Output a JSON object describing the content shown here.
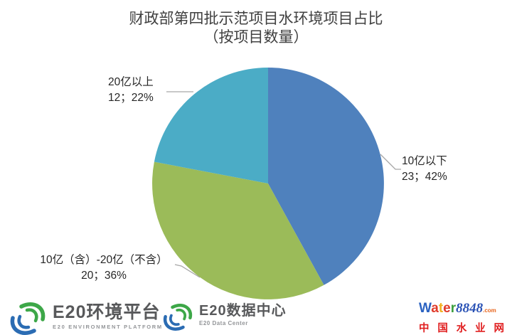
{
  "title": {
    "line1": "财政部第四批示范项目水环境项目占比",
    "line2": "（按项目数量）"
  },
  "chart_data": {
    "type": "pie",
    "title": "财政部第四批示范项目水环境项目占比（按项目数量）",
    "start_angle_deg": 0,
    "direction": "clockwise",
    "legend": "none",
    "slices": [
      {
        "label": "10亿以下",
        "count": 23,
        "percent": 42,
        "value_text": "23；42%",
        "color": "#4F81BD"
      },
      {
        "label": "10亿（含）-20亿（不含）",
        "count": 20,
        "percent": 36,
        "value_text": "20；36%",
        "color": "#9BBB59"
      },
      {
        "label": "20亿以上",
        "count": 12,
        "percent": 22,
        "value_text": "12；22%",
        "color": "#4BACC6"
      }
    ]
  },
  "footer": {
    "e20_platform": {
      "name": "E20环境平台",
      "subtitle": "E20 ENVIRONMENT PLATFORM"
    },
    "e20_data_center": {
      "name": "E20数据中心",
      "subtitle": "E20 Data Center"
    },
    "e20_brand_colors": {
      "green": "#3DA748",
      "blue": "#2B6CB3"
    },
    "water8848": {
      "letters": [
        {
          "ch": "W",
          "color": "#2B62C1"
        },
        {
          "ch": "a",
          "color": "#E03A2B"
        },
        {
          "ch": "t",
          "color": "#F2B01E"
        },
        {
          "ch": "e",
          "color": "#E03A2B"
        },
        {
          "ch": "r",
          "color": "#3A9E3C"
        }
      ],
      "number": "8848",
      "number_color": "#2A52B5",
      "tld": ".com",
      "tld_color": "#E8641B",
      "cn_name": "中国水业网",
      "cn_color": "#E01E1F"
    }
  }
}
